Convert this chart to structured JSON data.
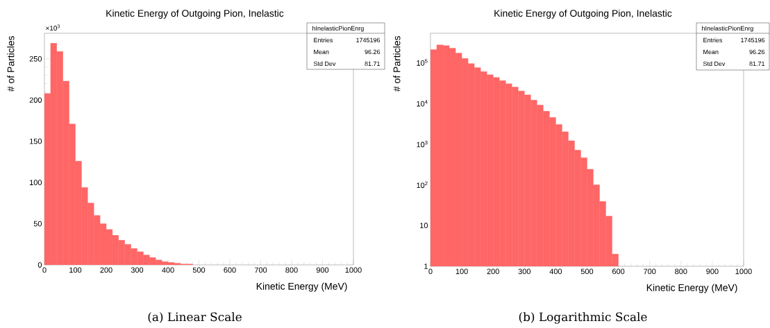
{
  "chart_data": [
    {
      "type": "histogram",
      "title": "Kinetic Energy of Outgoing Pion, Inelastic",
      "xlabel": "Kinetic Energy (MeV)",
      "ylabel": "# of Particles",
      "bins": [
        0,
        20,
        40,
        60,
        80,
        100,
        120,
        140,
        160,
        180,
        200,
        220,
        240,
        260,
        280,
        300,
        320,
        340,
        360,
        380,
        400,
        420,
        440,
        460,
        480,
        500,
        520,
        540,
        560,
        580,
        600,
        620,
        640,
        660,
        680,
        700,
        720,
        740,
        760,
        780,
        800,
        820,
        840,
        860,
        880,
        900,
        920,
        940,
        960,
        980,
        1000
      ],
      "values": [
        208,
        269,
        259,
        223,
        171,
        126,
        94,
        75,
        60,
        50,
        43,
        36,
        30,
        25,
        20,
        16,
        12,
        9,
        6,
        4,
        3,
        2,
        1,
        1,
        null,
        null,
        null,
        null,
        null,
        null,
        0,
        0,
        0,
        0,
        0,
        0,
        0,
        0,
        0,
        0,
        0,
        0,
        0,
        0,
        0,
        0,
        0,
        0,
        0,
        0
      ],
      "color": "#ff6666",
      "xlim": [
        0,
        1000
      ],
      "ylim": [
        0,
        281
      ],
      "xticks": [
        0,
        100,
        200,
        300,
        400,
        500,
        600,
        700,
        800,
        900,
        1000
      ],
      "yticks": [
        0,
        50,
        100,
        150,
        200,
        250
      ],
      "annotations": [
        "(a) Linear Scale",
        "hInelasticPionEnrg",
        "Entries",
        "1745196",
        "Mean",
        "96.26",
        "Std Dev",
        "81.71",
        "×10$^{3}$"
      ]
    },
    {
      "type": "histogram",
      "title": "Kinetic Energy of Outgoing Pion, Inelastic",
      "xlabel": "Kinetic Energy (MeV)",
      "ylabel": "# of Particles",
      "bins": [
        0,
        20,
        40,
        60,
        80,
        100,
        120,
        140,
        160,
        180,
        200,
        220,
        240,
        260,
        280,
        300,
        320,
        340,
        360,
        380,
        400,
        420,
        440,
        460,
        480,
        500,
        520,
        540,
        560,
        580,
        600,
        620,
        640,
        660,
        680,
        700,
        720,
        740,
        760,
        780,
        800,
        820,
        840,
        860,
        880,
        900,
        920,
        940,
        960,
        980,
        1000
      ],
      "values": [
        208000,
        269000,
        259000,
        223000,
        171000,
        126000,
        94000,
        75000,
        60000,
        50000,
        43000,
        36000,
        30000,
        25000,
        20000,
        16000,
        12000,
        9000,
        6400,
        4500,
        3000,
        2000,
        1200,
        710,
        460,
        240,
        100,
        39,
        17,
        2,
        null,
        null,
        null,
        null,
        null,
        null,
        null,
        null,
        null,
        null,
        null,
        null,
        null,
        null,
        null,
        null,
        null,
        null,
        null,
        null
      ],
      "color": "#ff6666",
      "xlim": [
        0,
        1000
      ],
      "ylim": [
        1,
        520000
      ],
      "log": true,
      "xticks": [
        0,
        100,
        200,
        300,
        400,
        500,
        600,
        700,
        800,
        900,
        1000
      ],
      "yticks": [
        1,
        10,
        {
          "value": 100,
          "label": "10$^{2}$"
        },
        {
          "value": 1000,
          "label": "10$^{3}$"
        },
        {
          "value": 10000,
          "label": "10$^{4}$"
        },
        {
          "value": 100000,
          "label": "10$^{5}$"
        }
      ],
      "annotations": [
        "(b) Logarithmic Scale",
        "hInelasticPionEnrg",
        "Entries",
        "1745196",
        "Mean",
        "96.26",
        "Std Dev",
        "81.71"
      ]
    }
  ]
}
